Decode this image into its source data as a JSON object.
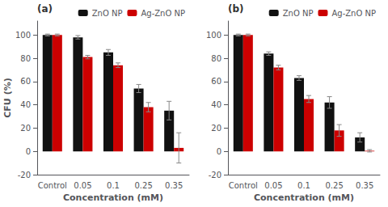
{
  "chart_data": [
    {
      "type": "bar",
      "annotation": "(a)",
      "xlabel": "Concentration (mM)",
      "ylabel": "CFU (%)",
      "categories": [
        "Control",
        "0.05",
        "0.1",
        "0.25",
        "0.35"
      ],
      "series": [
        {
          "name": "ZnO NP",
          "color": "#111111",
          "values": [
            100,
            98,
            85,
            54,
            35
          ],
          "errors": [
            0.8,
            1.5,
            2.5,
            3.5,
            8
          ]
        },
        {
          "name": "Ag-ZnO NP",
          "color": "#cc0000",
          "values": [
            100,
            81,
            74,
            38,
            3
          ],
          "errors": [
            0.8,
            1.5,
            2.0,
            4.0,
            13
          ]
        }
      ],
      "ylim": [
        -20,
        112
      ],
      "yticks": [
        -20,
        0,
        20,
        40,
        60,
        80,
        100
      ],
      "grid": false,
      "legend": "upper right"
    },
    {
      "type": "bar",
      "annotation": "(b)",
      "xlabel": "Concentration (mM)",
      "categories": [
        "Control",
        "0.05",
        "0.1",
        "0.25",
        "0.35"
      ],
      "series": [
        {
          "name": "ZnO NP",
          "color": "#111111",
          "values": [
            100,
            84,
            63,
            42,
            12
          ],
          "errors": [
            0.8,
            1.5,
            2.0,
            5,
            4
          ]
        },
        {
          "name": "Ag-ZnO NP",
          "color": "#cc0000",
          "values": [
            100,
            72,
            45,
            18,
            0.5
          ],
          "errors": [
            0.8,
            2.0,
            3.0,
            5,
            1
          ]
        }
      ],
      "ylim": [
        -20,
        112
      ],
      "yticks": [
        -20,
        0,
        20,
        40,
        60,
        80,
        100
      ],
      "grid": false,
      "legend": "upper right"
    }
  ]
}
